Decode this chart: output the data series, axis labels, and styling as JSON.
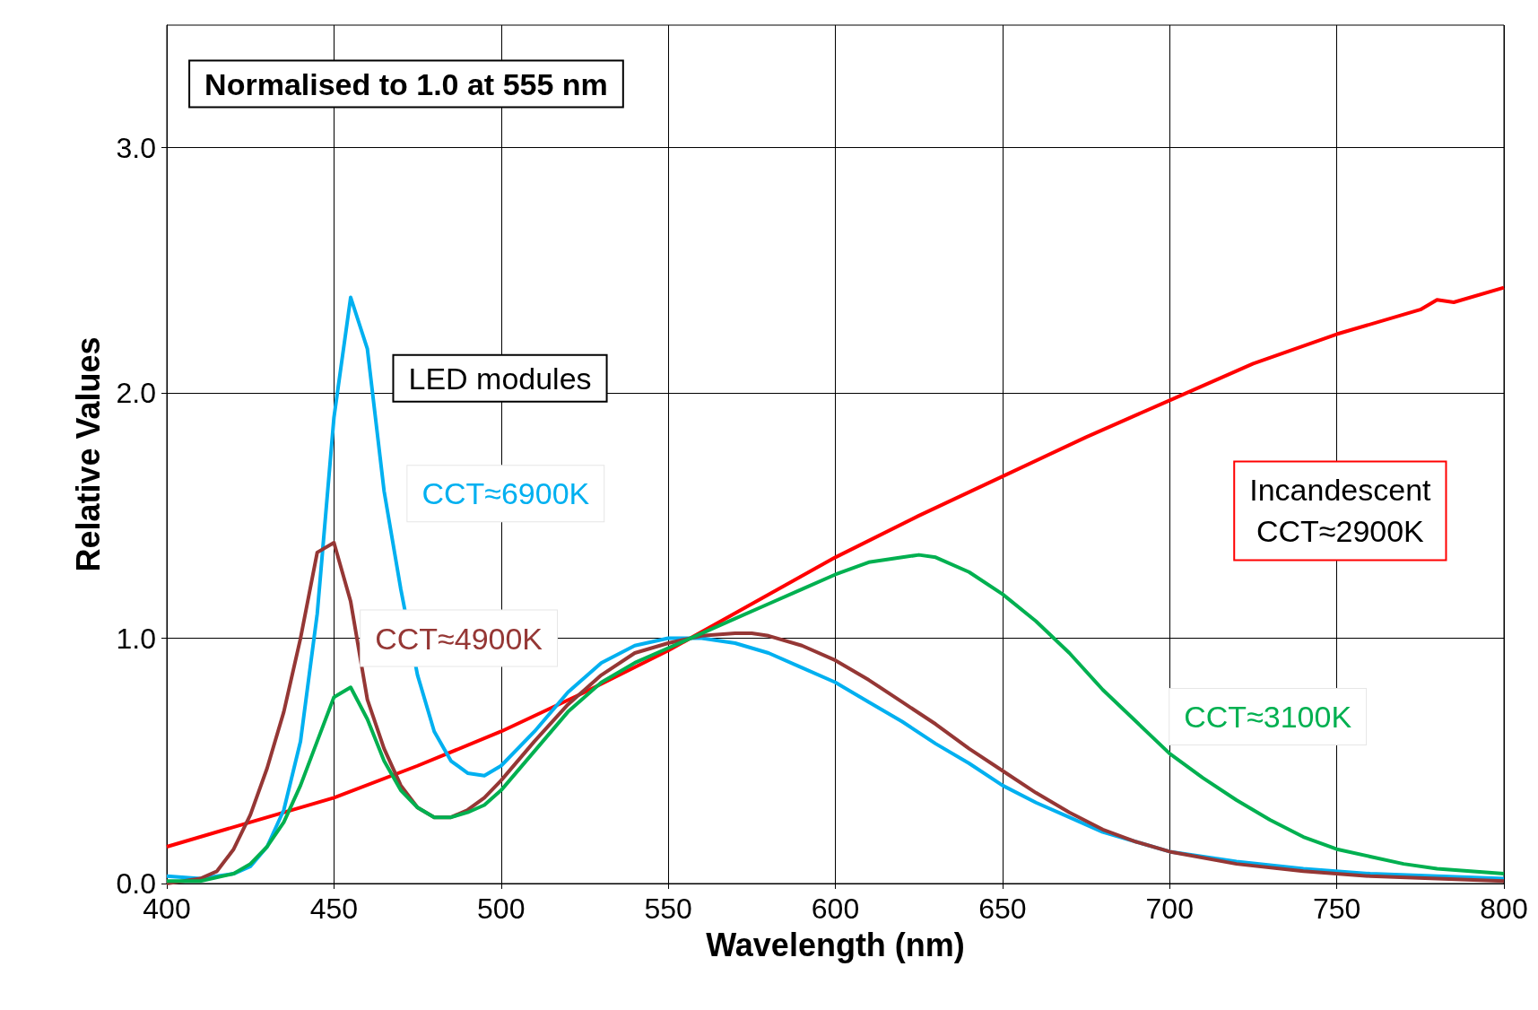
{
  "chart_data": {
    "type": "line",
    "xlabel": "Wavelength (nm)",
    "ylabel": "Relative Values",
    "annotations": [
      "Normalised to 1.0 at 555 nm",
      "LED modules"
    ],
    "xlim": [
      400,
      800
    ],
    "xticks": [
      400,
      450,
      500,
      550,
      600,
      650,
      700,
      750,
      800
    ],
    "ylim": [
      0,
      3.5
    ],
    "yticks": [
      {
        "value": 0,
        "label": "0.0"
      },
      {
        "value": 1,
        "label": "1.0"
      },
      {
        "value": 2,
        "label": "2.0"
      },
      {
        "value": 3,
        "label": "3.0"
      }
    ],
    "grid": true,
    "legend": false,
    "marker": "none",
    "line_style": "solid",
    "series": [
      {
        "name": "Incandescent\nCCT≈2900K",
        "color": "#ff0000",
        "x": [
          400,
          425,
          450,
          475,
          500,
          525,
          550,
          575,
          600,
          625,
          650,
          675,
          700,
          725,
          750,
          775,
          780,
          785,
          800
        ],
        "values": [
          0.15,
          0.25,
          0.35,
          0.48,
          0.62,
          0.78,
          0.95,
          1.14,
          1.33,
          1.5,
          1.66,
          1.82,
          1.97,
          2.12,
          2.24,
          2.34,
          2.38,
          2.37,
          2.43
        ]
      },
      {
        "name": "CCT≈6900K",
        "color": "#00b0f0",
        "x": [
          400,
          410,
          420,
          425,
          430,
          435,
          440,
          445,
          450,
          455,
          460,
          465,
          470,
          475,
          480,
          485,
          490,
          495,
          500,
          510,
          520,
          530,
          540,
          550,
          560,
          570,
          580,
          590,
          600,
          610,
          620,
          630,
          640,
          650,
          660,
          670,
          680,
          690,
          700,
          720,
          740,
          760,
          780,
          800
        ],
        "values": [
          0.03,
          0.02,
          0.04,
          0.07,
          0.15,
          0.3,
          0.58,
          1.1,
          1.9,
          2.39,
          2.18,
          1.6,
          1.2,
          0.85,
          0.62,
          0.5,
          0.45,
          0.44,
          0.48,
          0.62,
          0.78,
          0.9,
          0.97,
          1.0,
          1.0,
          0.98,
          0.94,
          0.88,
          0.82,
          0.74,
          0.66,
          0.57,
          0.49,
          0.4,
          0.33,
          0.27,
          0.21,
          0.17,
          0.13,
          0.09,
          0.06,
          0.04,
          0.03,
          0.02
        ]
      },
      {
        "name": "CCT≈4900K",
        "color": "#953735",
        "x": [
          400,
          410,
          415,
          420,
          425,
          430,
          435,
          440,
          445,
          450,
          455,
          460,
          465,
          470,
          475,
          480,
          485,
          490,
          495,
          500,
          510,
          520,
          530,
          540,
          550,
          560,
          570,
          575,
          580,
          590,
          600,
          610,
          620,
          630,
          640,
          650,
          660,
          670,
          680,
          690,
          700,
          720,
          740,
          760,
          780,
          800
        ],
        "values": [
          0.0,
          0.02,
          0.05,
          0.14,
          0.28,
          0.47,
          0.7,
          1.0,
          1.35,
          1.39,
          1.15,
          0.75,
          0.55,
          0.4,
          0.31,
          0.27,
          0.27,
          0.3,
          0.35,
          0.42,
          0.58,
          0.73,
          0.85,
          0.94,
          0.98,
          1.01,
          1.02,
          1.02,
          1.01,
          0.97,
          0.91,
          0.83,
          0.74,
          0.65,
          0.55,
          0.46,
          0.37,
          0.29,
          0.22,
          0.17,
          0.13,
          0.08,
          0.05,
          0.03,
          0.02,
          0.01
        ]
      },
      {
        "name": "CCT≈3100K",
        "color": "#00b050",
        "x": [
          400,
          410,
          420,
          425,
          430,
          435,
          440,
          445,
          450,
          455,
          460,
          465,
          470,
          475,
          480,
          485,
          490,
          495,
          500,
          510,
          520,
          530,
          540,
          550,
          560,
          570,
          580,
          590,
          600,
          610,
          620,
          625,
          630,
          640,
          650,
          660,
          670,
          680,
          690,
          700,
          710,
          720,
          730,
          740,
          750,
          760,
          770,
          780,
          790,
          800
        ],
        "values": [
          0.01,
          0.01,
          0.04,
          0.08,
          0.15,
          0.25,
          0.4,
          0.58,
          0.76,
          0.8,
          0.67,
          0.5,
          0.38,
          0.31,
          0.27,
          0.27,
          0.29,
          0.32,
          0.38,
          0.54,
          0.7,
          0.82,
          0.9,
          0.96,
          1.02,
          1.08,
          1.14,
          1.2,
          1.26,
          1.31,
          1.33,
          1.34,
          1.33,
          1.27,
          1.18,
          1.07,
          0.94,
          0.79,
          0.66,
          0.53,
          0.43,
          0.34,
          0.26,
          0.19,
          0.14,
          0.11,
          0.08,
          0.06,
          0.05,
          0.04
        ]
      }
    ]
  }
}
